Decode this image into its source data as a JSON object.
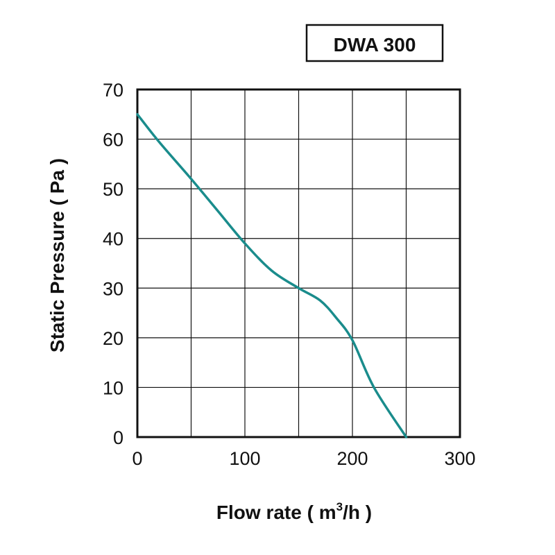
{
  "chart_data": {
    "type": "line",
    "title": "DWA 300",
    "xlabel": "Flow rate ( m³/h )",
    "xlabel_parts": {
      "before": "Flow rate ( m",
      "sup": "3",
      "after": "/h )"
    },
    "ylabel": "Static Pressure ( Pa )",
    "xlim": [
      0,
      300
    ],
    "ylim": [
      0,
      70
    ],
    "x_ticks": [
      0,
      100,
      200,
      300
    ],
    "y_ticks": [
      0,
      10,
      20,
      30,
      40,
      50,
      60,
      70
    ],
    "grid": true,
    "line_color": "#1a8c8c",
    "series": [
      {
        "x": [
          0,
          20,
          50,
          75,
          100,
          125,
          150,
          170,
          185,
          200,
          220,
          250
        ],
        "y": [
          65,
          59.5,
          52,
          45.5,
          39,
          33.5,
          30,
          27.5,
          24,
          19.5,
          10,
          0
        ]
      }
    ]
  }
}
